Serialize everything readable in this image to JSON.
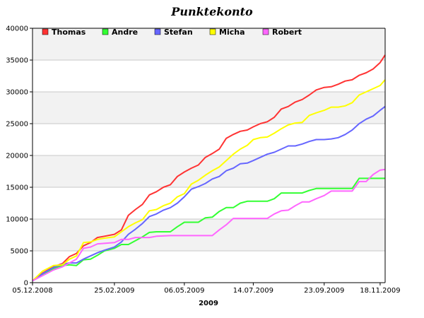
{
  "chart_data": {
    "type": "line",
    "title": "Punktekonto",
    "xlabel": "2009",
    "ylabel": "",
    "ylim": [
      0,
      40000
    ],
    "yticks": [
      0,
      5000,
      10000,
      15000,
      20000,
      25000,
      30000,
      35000,
      40000
    ],
    "xticks": [
      "05.12.2008",
      "25.02.2009",
      "06.05.2009",
      "14.07.2009",
      "23.09.2009",
      "18.11.2009"
    ],
    "xtick_values": [
      "2008-12-05",
      "2009-02-25",
      "2009-05-06",
      "2009-07-14",
      "2009-09-23",
      "2009-11-18"
    ],
    "xlim": [
      "2008-12-05",
      "2009-11-23"
    ],
    "grid": "horizontal",
    "background_bands": "alternating",
    "legend": "top-left",
    "series": [
      {
        "name": "Thomas",
        "color": "#ff3333",
        "points": [
          [
            "2008-12-05",
            300
          ],
          [
            "2008-12-15",
            1500
          ],
          [
            "2008-12-26",
            2500
          ],
          [
            "2009-01-04",
            3000
          ],
          [
            "2009-01-11",
            4100
          ],
          [
            "2009-01-18",
            4600
          ],
          [
            "2009-01-25",
            5800
          ],
          [
            "2009-02-01",
            6300
          ],
          [
            "2009-02-08",
            7100
          ],
          [
            "2009-02-15",
            7300
          ],
          [
            "2009-02-25",
            7600
          ],
          [
            "2009-03-04",
            8300
          ],
          [
            "2009-03-11",
            10600
          ],
          [
            "2009-03-18",
            11500
          ],
          [
            "2009-03-25",
            12300
          ],
          [
            "2009-04-01",
            13800
          ],
          [
            "2009-04-08",
            14300
          ],
          [
            "2009-04-15",
            15000
          ],
          [
            "2009-04-22",
            15400
          ],
          [
            "2009-04-29",
            16700
          ],
          [
            "2009-05-06",
            17400
          ],
          [
            "2009-05-13",
            18000
          ],
          [
            "2009-05-20",
            18500
          ],
          [
            "2009-05-27",
            19700
          ],
          [
            "2009-06-03",
            20300
          ],
          [
            "2009-06-10",
            21000
          ],
          [
            "2009-06-17",
            22700
          ],
          [
            "2009-06-24",
            23300
          ],
          [
            "2009-07-01",
            23800
          ],
          [
            "2009-07-08",
            24000
          ],
          [
            "2009-07-14",
            24500
          ],
          [
            "2009-07-21",
            25000
          ],
          [
            "2009-07-28",
            25300
          ],
          [
            "2009-08-04",
            26000
          ],
          [
            "2009-08-11",
            27300
          ],
          [
            "2009-08-18",
            27700
          ],
          [
            "2009-08-25",
            28400
          ],
          [
            "2009-09-01",
            28800
          ],
          [
            "2009-09-08",
            29500
          ],
          [
            "2009-09-15",
            30300
          ],
          [
            "2009-09-23",
            30700
          ],
          [
            "2009-09-30",
            30800
          ],
          [
            "2009-10-07",
            31200
          ],
          [
            "2009-10-14",
            31700
          ],
          [
            "2009-10-21",
            31900
          ],
          [
            "2009-10-28",
            32600
          ],
          [
            "2009-11-04",
            33000
          ],
          [
            "2009-11-11",
            33600
          ],
          [
            "2009-11-18",
            34600
          ],
          [
            "2009-11-23",
            35800
          ]
        ]
      },
      {
        "name": "Andre",
        "color": "#33ff33",
        "points": [
          [
            "2008-12-05",
            300
          ],
          [
            "2008-12-15",
            1200
          ],
          [
            "2008-12-26",
            2200
          ],
          [
            "2009-01-04",
            2700
          ],
          [
            "2009-01-11",
            2800
          ],
          [
            "2009-01-18",
            2700
          ],
          [
            "2009-01-25",
            3600
          ],
          [
            "2009-02-01",
            3700
          ],
          [
            "2009-02-08",
            4300
          ],
          [
            "2009-02-15",
            5000
          ],
          [
            "2009-02-25",
            5400
          ],
          [
            "2009-03-04",
            6000
          ],
          [
            "2009-03-11",
            6000
          ],
          [
            "2009-03-18",
            6600
          ],
          [
            "2009-03-25",
            7200
          ],
          [
            "2009-04-01",
            7900
          ],
          [
            "2009-04-08",
            8000
          ],
          [
            "2009-04-22",
            8000
          ],
          [
            "2009-04-29",
            8800
          ],
          [
            "2009-05-06",
            9500
          ],
          [
            "2009-05-20",
            9500
          ],
          [
            "2009-05-27",
            10200
          ],
          [
            "2009-06-03",
            10300
          ],
          [
            "2009-06-10",
            11200
          ],
          [
            "2009-06-17",
            11800
          ],
          [
            "2009-06-24",
            11800
          ],
          [
            "2009-07-01",
            12500
          ],
          [
            "2009-07-08",
            12800
          ],
          [
            "2009-07-28",
            12800
          ],
          [
            "2009-08-04",
            13200
          ],
          [
            "2009-08-11",
            14100
          ],
          [
            "2009-09-01",
            14100
          ],
          [
            "2009-09-08",
            14500
          ],
          [
            "2009-09-15",
            14800
          ],
          [
            "2009-10-14",
            14800
          ],
          [
            "2009-10-21",
            14800
          ],
          [
            "2009-10-28",
            16400
          ],
          [
            "2009-11-23",
            16400
          ]
        ]
      },
      {
        "name": "Stefan",
        "color": "#6666ff",
        "points": [
          [
            "2008-12-05",
            300
          ],
          [
            "2008-12-15",
            1400
          ],
          [
            "2008-12-26",
            2400
          ],
          [
            "2009-01-04",
            2900
          ],
          [
            "2009-01-11",
            3100
          ],
          [
            "2009-01-18",
            3100
          ],
          [
            "2009-01-25",
            3700
          ],
          [
            "2009-02-01",
            4200
          ],
          [
            "2009-02-08",
            4700
          ],
          [
            "2009-02-15",
            5100
          ],
          [
            "2009-02-25",
            5600
          ],
          [
            "2009-03-04",
            6400
          ],
          [
            "2009-03-11",
            7600
          ],
          [
            "2009-03-18",
            8400
          ],
          [
            "2009-03-25",
            9300
          ],
          [
            "2009-04-01",
            10400
          ],
          [
            "2009-04-08",
            10800
          ],
          [
            "2009-04-15",
            11400
          ],
          [
            "2009-04-22",
            11800
          ],
          [
            "2009-04-29",
            12500
          ],
          [
            "2009-05-06",
            13500
          ],
          [
            "2009-05-13",
            14700
          ],
          [
            "2009-05-20",
            15100
          ],
          [
            "2009-05-27",
            15600
          ],
          [
            "2009-06-03",
            16300
          ],
          [
            "2009-06-10",
            16700
          ],
          [
            "2009-06-17",
            17600
          ],
          [
            "2009-06-24",
            18000
          ],
          [
            "2009-07-01",
            18700
          ],
          [
            "2009-07-08",
            18800
          ],
          [
            "2009-07-14",
            19200
          ],
          [
            "2009-07-21",
            19700
          ],
          [
            "2009-07-28",
            20200
          ],
          [
            "2009-08-04",
            20500
          ],
          [
            "2009-08-11",
            21000
          ],
          [
            "2009-08-18",
            21500
          ],
          [
            "2009-08-25",
            21500
          ],
          [
            "2009-09-01",
            21800
          ],
          [
            "2009-09-08",
            22200
          ],
          [
            "2009-09-15",
            22500
          ],
          [
            "2009-09-23",
            22500
          ],
          [
            "2009-09-30",
            22600
          ],
          [
            "2009-10-07",
            22800
          ],
          [
            "2009-10-14",
            23300
          ],
          [
            "2009-10-21",
            24000
          ],
          [
            "2009-10-28",
            25000
          ],
          [
            "2009-11-04",
            25700
          ],
          [
            "2009-11-11",
            26200
          ],
          [
            "2009-11-18",
            27100
          ],
          [
            "2009-11-23",
            27700
          ]
        ]
      },
      {
        "name": "Micha",
        "color": "#ffff00",
        "points": [
          [
            "2008-12-05",
            300
          ],
          [
            "2008-12-15",
            1800
          ],
          [
            "2008-12-26",
            2700
          ],
          [
            "2009-01-04",
            2800
          ],
          [
            "2009-01-11",
            3700
          ],
          [
            "2009-01-18",
            4200
          ],
          [
            "2009-01-25",
            6300
          ],
          [
            "2009-02-01",
            6400
          ],
          [
            "2009-02-08",
            6800
          ],
          [
            "2009-02-15",
            7000
          ],
          [
            "2009-02-25",
            7200
          ],
          [
            "2009-03-04",
            8000
          ],
          [
            "2009-03-11",
            8800
          ],
          [
            "2009-03-18",
            9400
          ],
          [
            "2009-03-25",
            9900
          ],
          [
            "2009-04-01",
            11300
          ],
          [
            "2009-04-08",
            11500
          ],
          [
            "2009-04-15",
            12100
          ],
          [
            "2009-04-22",
            12500
          ],
          [
            "2009-04-29",
            13500
          ],
          [
            "2009-05-06",
            14000
          ],
          [
            "2009-05-13",
            15500
          ],
          [
            "2009-05-20",
            16100
          ],
          [
            "2009-05-27",
            16900
          ],
          [
            "2009-06-03",
            17600
          ],
          [
            "2009-06-10",
            18200
          ],
          [
            "2009-06-17",
            19200
          ],
          [
            "2009-06-24",
            20200
          ],
          [
            "2009-07-01",
            21000
          ],
          [
            "2009-07-08",
            21600
          ],
          [
            "2009-07-14",
            22500
          ],
          [
            "2009-07-21",
            22800
          ],
          [
            "2009-07-28",
            22900
          ],
          [
            "2009-08-04",
            23500
          ],
          [
            "2009-08-11",
            24200
          ],
          [
            "2009-08-18",
            24800
          ],
          [
            "2009-08-25",
            25100
          ],
          [
            "2009-09-01",
            25200
          ],
          [
            "2009-09-08",
            26300
          ],
          [
            "2009-09-15",
            26700
          ],
          [
            "2009-09-23",
            27100
          ],
          [
            "2009-09-30",
            27600
          ],
          [
            "2009-10-07",
            27600
          ],
          [
            "2009-10-14",
            27800
          ],
          [
            "2009-10-21",
            28300
          ],
          [
            "2009-10-28",
            29500
          ],
          [
            "2009-11-04",
            30000
          ],
          [
            "2009-11-11",
            30500
          ],
          [
            "2009-11-18",
            31000
          ],
          [
            "2009-11-23",
            31900
          ]
        ]
      },
      {
        "name": "Robert",
        "color": "#ff66ff",
        "points": [
          [
            "2008-12-05",
            300
          ],
          [
            "2008-12-15",
            1100
          ],
          [
            "2008-12-26",
            2000
          ],
          [
            "2009-01-04",
            2500
          ],
          [
            "2009-01-11",
            3100
          ],
          [
            "2009-01-18",
            3700
          ],
          [
            "2009-01-25",
            5400
          ],
          [
            "2009-02-01",
            5600
          ],
          [
            "2009-02-08",
            6100
          ],
          [
            "2009-02-25",
            6300
          ],
          [
            "2009-03-04",
            6800
          ],
          [
            "2009-03-11",
            6800
          ],
          [
            "2009-03-18",
            7100
          ],
          [
            "2009-04-01",
            7100
          ],
          [
            "2009-04-08",
            7300
          ],
          [
            "2009-04-22",
            7400
          ],
          [
            "2009-06-03",
            7400
          ],
          [
            "2009-06-10",
            8300
          ],
          [
            "2009-06-17",
            9100
          ],
          [
            "2009-06-24",
            10100
          ],
          [
            "2009-07-28",
            10100
          ],
          [
            "2009-08-04",
            10800
          ],
          [
            "2009-08-11",
            11300
          ],
          [
            "2009-08-18",
            11400
          ],
          [
            "2009-08-25",
            12100
          ],
          [
            "2009-09-01",
            12700
          ],
          [
            "2009-09-08",
            12700
          ],
          [
            "2009-09-15",
            13200
          ],
          [
            "2009-09-23",
            13700
          ],
          [
            "2009-09-30",
            14400
          ],
          [
            "2009-10-21",
            14400
          ],
          [
            "2009-10-28",
            15900
          ],
          [
            "2009-11-04",
            15900
          ],
          [
            "2009-11-11",
            17000
          ],
          [
            "2009-11-18",
            17700
          ],
          [
            "2009-11-23",
            17800
          ]
        ]
      }
    ]
  }
}
